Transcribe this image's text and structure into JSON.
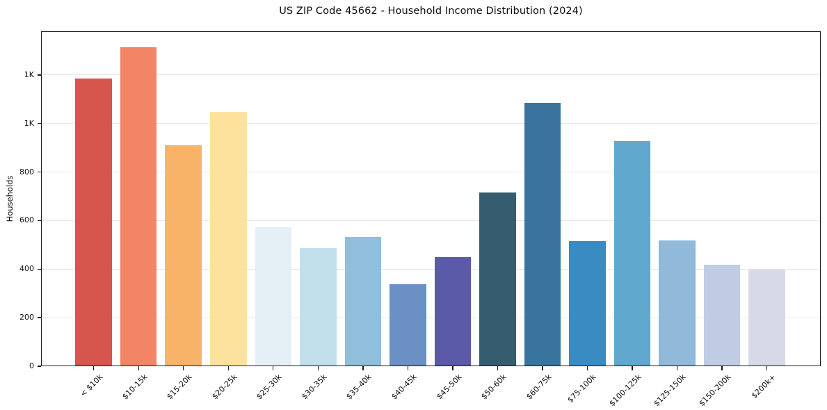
{
  "chart_data": {
    "type": "bar",
    "title": "US ZIP Code 45662 - Household Income Distribution (2024)",
    "xlabel": "",
    "ylabel": "Households",
    "categories": [
      "< $10k",
      "$10-15k",
      "$15-20k",
      "$20-25k",
      "$25-30k",
      "$30-35k",
      "$35-40k",
      "$40-45k",
      "$45-50k",
      "$50-60k",
      "$60-75k",
      "$75-100k",
      "$100-125k",
      "$125-150k",
      "$150-200k",
      "$200k+"
    ],
    "values": [
      1185,
      1315,
      910,
      1047,
      572,
      488,
      532,
      339,
      450,
      715,
      1086,
      514,
      927,
      517,
      418,
      398
    ],
    "bar_colors": [
      "#d6554d",
      "#f28565",
      "#f9b369",
      "#fce29d",
      "#e4eff6",
      "#c1e0ec",
      "#91bedb",
      "#6a90c4",
      "#5b5aa9",
      "#365d6f",
      "#38749e",
      "#398bc2",
      "#60a8cd",
      "#91b9da",
      "#c0cce3",
      "#d8d9e7"
    ],
    "yticks": [
      {
        "value": 0,
        "label": "0"
      },
      {
        "value": 200,
        "label": "200"
      },
      {
        "value": 400,
        "label": "400"
      },
      {
        "value": 600,
        "label": "600"
      },
      {
        "value": 800,
        "label": "800"
      },
      {
        "value": 1000,
        "label": "1K"
      },
      {
        "value": 1200,
        "label": "1K"
      }
    ],
    "ylim": [
      0,
      1380
    ],
    "grid": "horizontal-light-gray",
    "gridline_color": "#e7e7e7",
    "legend": "none",
    "x_tick_rotation_deg": 45,
    "plot_background": "#ffffff",
    "spine_color": "#191919"
  }
}
